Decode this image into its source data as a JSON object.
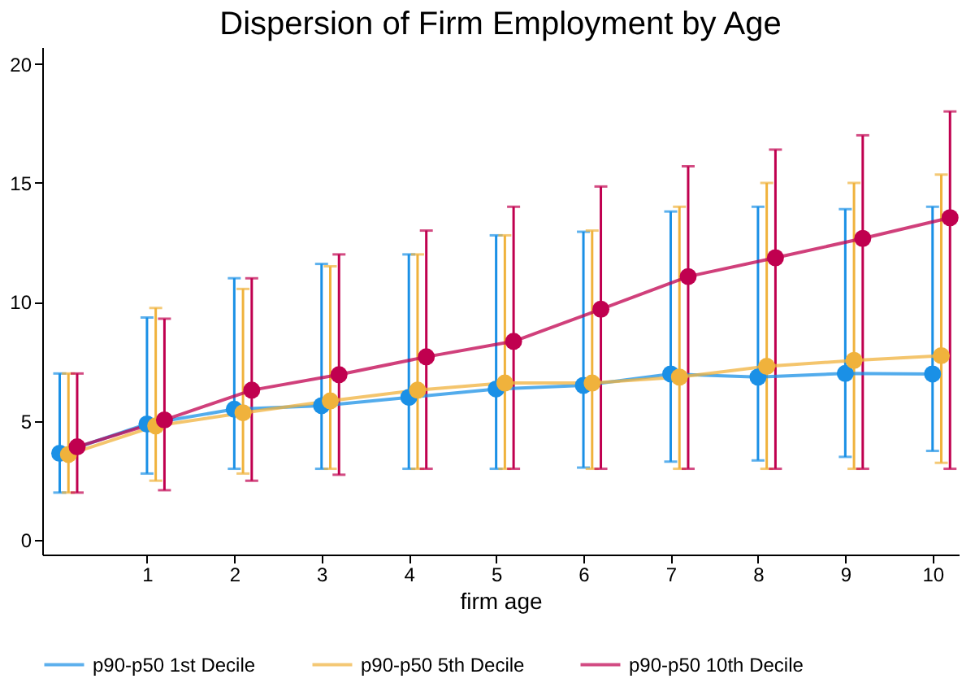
{
  "chart_data": {
    "type": "line",
    "title": "Dispersion of Firm Employment by Age",
    "xlabel": "firm age",
    "xlim": [
      -0.2,
      10.3
    ],
    "ylim": [
      -0.6,
      20.7
    ],
    "xticks": [
      1,
      2,
      3,
      4,
      5,
      6,
      7,
      8,
      9,
      10
    ],
    "yticks": [
      0,
      5,
      10,
      15,
      20
    ],
    "legend": "bottom",
    "marker": "circle",
    "grid": false,
    "series": [
      {
        "name": "p90-p50 1st Decile",
        "color": "#1a90e6",
        "x": [
          0,
          1,
          2,
          3,
          4,
          5,
          6,
          7,
          8,
          9,
          10
        ],
        "values": [
          3.65,
          4.88,
          5.5,
          5.65,
          6.0,
          6.35,
          6.5,
          6.98,
          6.85,
          7.0,
          6.98
        ],
        "errors": [
          [
            2,
            7
          ],
          [
            2.8,
            9.35
          ],
          [
            3,
            11
          ],
          [
            3,
            11.6
          ],
          [
            3,
            12
          ],
          [
            3,
            12.8
          ],
          [
            3.05,
            12.95
          ],
          [
            3.3,
            13.8
          ],
          [
            3.35,
            14.0
          ],
          [
            3.5,
            13.9
          ],
          [
            3.75,
            14.0
          ]
        ]
      },
      {
        "name": "p90-p50 5th Decile",
        "color": "#f0b23c",
        "x": [
          0.1,
          1.1,
          2.1,
          3.1,
          4.1,
          5.1,
          6.1,
          7.1,
          8.1,
          9.1,
          10.1
        ],
        "values": [
          3.6,
          4.8,
          5.35,
          5.85,
          6.3,
          6.6,
          6.6,
          6.85,
          7.3,
          7.55,
          7.75
        ],
        "errors": [
          [
            2,
            7
          ],
          [
            2.5,
            9.75
          ],
          [
            2.8,
            10.55
          ],
          [
            3,
            11.5
          ],
          [
            3,
            12
          ],
          [
            3,
            12.8
          ],
          [
            3,
            13
          ],
          [
            3,
            14.0
          ],
          [
            3,
            15.0
          ],
          [
            3,
            15.0
          ],
          [
            3.25,
            15.35
          ]
        ]
      },
      {
        "name": "p90-p50 10th Decile",
        "color": "#c0004f",
        "x": [
          0.2,
          1.2,
          2.2,
          3.2,
          4.2,
          5.2,
          6.2,
          7.2,
          8.2,
          9.2,
          10.2
        ],
        "values": [
          3.92,
          5.05,
          6.3,
          6.95,
          7.7,
          8.35,
          9.7,
          11.07,
          11.86,
          12.67,
          13.54
        ],
        "errors": [
          [
            2,
            7
          ],
          [
            2.1,
            9.3
          ],
          [
            2.5,
            11
          ],
          [
            2.75,
            12
          ],
          [
            3,
            13
          ],
          [
            3,
            14.0
          ],
          [
            3,
            14.85
          ],
          [
            3,
            15.7
          ],
          [
            3,
            16.4
          ],
          [
            3,
            17.0
          ],
          [
            3,
            18.0
          ]
        ]
      }
    ]
  }
}
